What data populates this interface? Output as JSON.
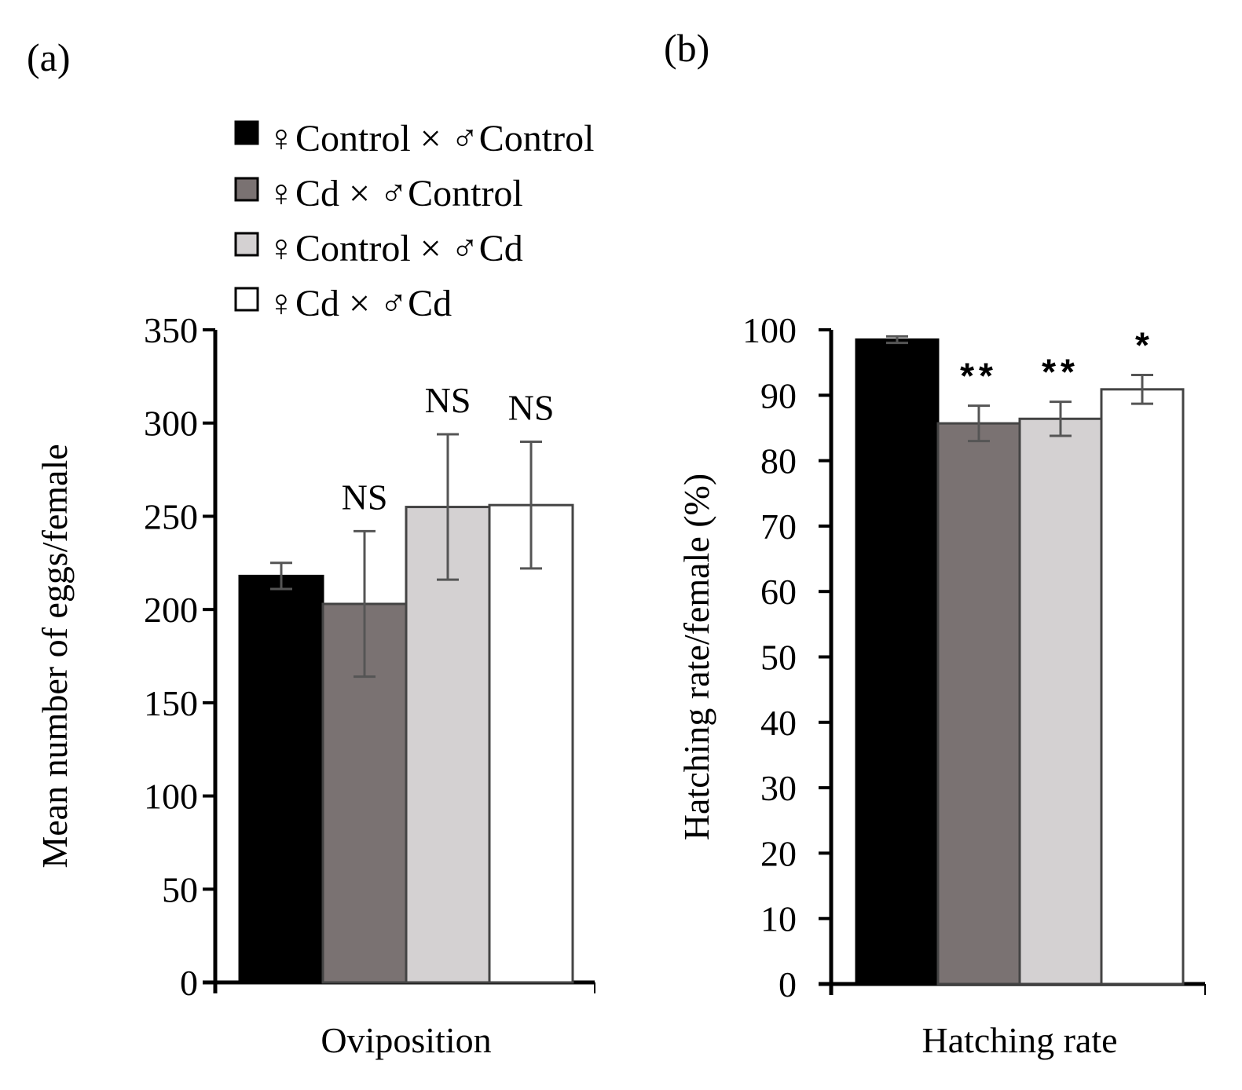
{
  "figure": {
    "panel_a_label": "(a)",
    "panel_b_label": "(b)"
  },
  "legend": {
    "items": [
      {
        "label": "♀Control × ♂Control",
        "color": "#000000"
      },
      {
        "label": "♀Cd × ♂Control",
        "color": "#7a7272"
      },
      {
        "label": "♀Control × ♂Cd",
        "color": "#d4d1d2"
      },
      {
        "label": "♀Cd × ♂Cd",
        "color": "#ffffff"
      }
    ]
  },
  "chart_data": [
    {
      "type": "bar",
      "title": "",
      "xlabel": "Oviposition",
      "ylabel": "Mean number of eggs/female",
      "categories": [
        "Oviposition"
      ],
      "ylim": [
        0,
        350
      ],
      "yticks": [
        0,
        50,
        100,
        150,
        200,
        250,
        300,
        350
      ],
      "series": [
        {
          "name": "♀Control × ♂Control",
          "values": [
            218
          ],
          "error": [
            7
          ],
          "annotation": "",
          "color": "#000000"
        },
        {
          "name": "♀Cd × ♂Control",
          "values": [
            203
          ],
          "error": [
            39
          ],
          "annotation": "NS",
          "color": "#7a7272"
        },
        {
          "name": "♀Control × ♂Cd",
          "values": [
            255
          ],
          "error": [
            39
          ],
          "annotation": "NS",
          "color": "#d4d1d2"
        },
        {
          "name": "♀Cd × ♂Cd",
          "values": [
            256
          ],
          "error": [
            34
          ],
          "annotation": "NS",
          "color": "#ffffff"
        }
      ]
    },
    {
      "type": "bar",
      "title": "",
      "xlabel": "Hatching rate",
      "ylabel": "Hatching rate/female (%)",
      "categories": [
        "Hatching rate"
      ],
      "ylim": [
        0,
        100
      ],
      "yticks": [
        0,
        10,
        20,
        30,
        40,
        50,
        60,
        70,
        80,
        90,
        100
      ],
      "series": [
        {
          "name": "♀Control × ♂Control",
          "values": [
            98.5
          ],
          "error": [
            0.5
          ],
          "annotation": "",
          "color": "#000000"
        },
        {
          "name": "♀Cd × ♂Control",
          "values": [
            85.7
          ],
          "error": [
            2.7
          ],
          "annotation": "**",
          "color": "#7a7272"
        },
        {
          "name": "♀Control × ♂Cd",
          "values": [
            86.4
          ],
          "error": [
            2.6
          ],
          "annotation": "**",
          "color": "#d4d1d2"
        },
        {
          "name": "♀Cd × ♂Cd",
          "values": [
            90.9
          ],
          "error": [
            2.2
          ],
          "annotation": "*",
          "color": "#ffffff"
        }
      ]
    }
  ]
}
